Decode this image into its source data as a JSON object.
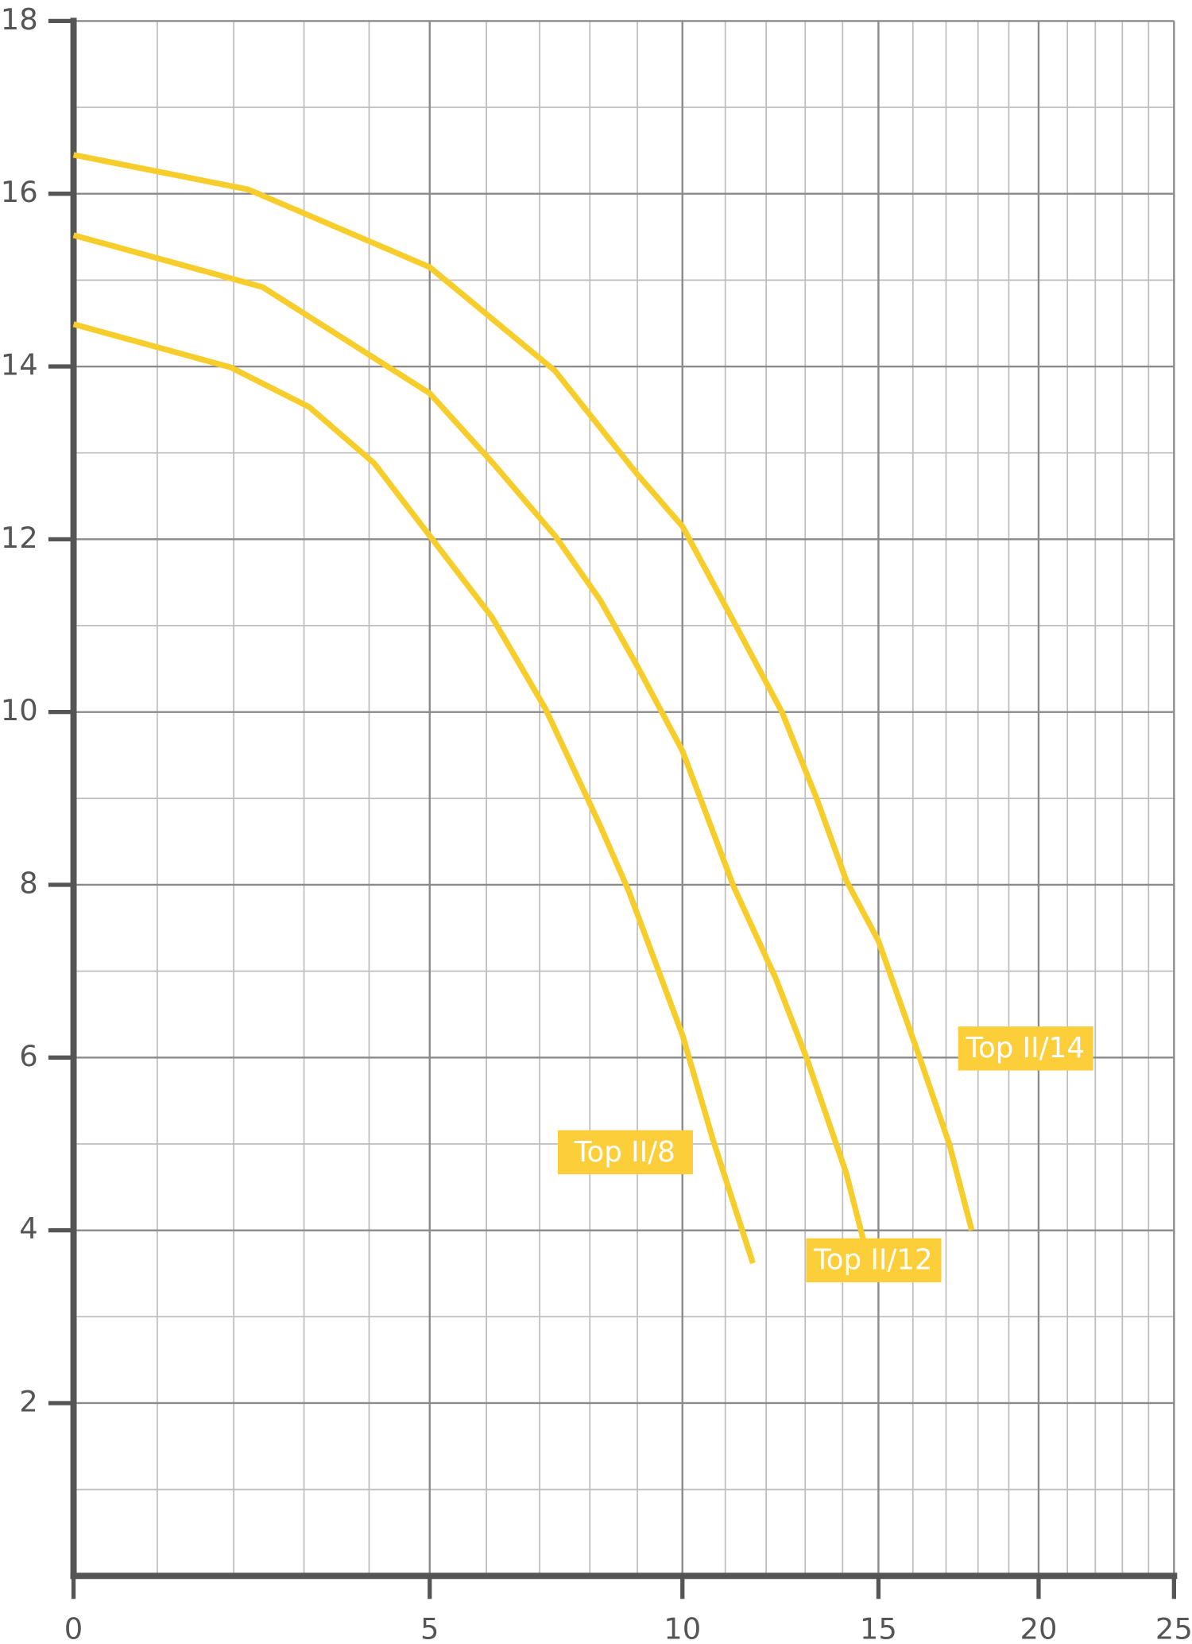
{
  "chart_data": {
    "type": "line",
    "xscale": "log",
    "xscale_offset": 10,
    "xlim": [
      0,
      25
    ],
    "xticks": [
      0,
      5,
      10,
      15,
      20,
      25
    ],
    "xminorticks": [
      1,
      2,
      3,
      4,
      6,
      7,
      8,
      9,
      11,
      12,
      13,
      14,
      16,
      17,
      18,
      19,
      21,
      22,
      23,
      24
    ],
    "ylim": [
      0,
      18
    ],
    "yticks": [
      2,
      4,
      6,
      8,
      10,
      12,
      14,
      16,
      18
    ],
    "yminorticks": [
      1,
      3,
      5,
      7,
      9,
      11,
      13,
      15,
      17
    ],
    "grid": true,
    "series": [
      {
        "name": "Top II/8",
        "color": "#f7cd2c",
        "x": [
          0,
          1.96,
          3.08,
          4.08,
          5,
          6.1,
          7.11,
          8.2,
          8.82,
          10,
          10.7,
          11.67
        ],
        "values": [
          14.49,
          13.99,
          13.53,
          12.88,
          12.04,
          11.1,
          10.04,
          8.7,
          7.92,
          6.26,
          5.06,
          3.62
        ]
      },
      {
        "name": "Top II/12",
        "color": "#f7cd2c",
        "x": [
          0,
          2.4,
          5,
          6.12,
          7.3,
          8.22,
          9.05,
          10,
          11.2,
          12.24,
          13.05,
          14.1,
          14.76
        ],
        "values": [
          15.52,
          14.92,
          13.69,
          12.88,
          12.04,
          11.29,
          10.48,
          9.55,
          7.98,
          6.92,
          5.98,
          4.66,
          3.59
        ]
      },
      {
        "name": "Top II/14",
        "color": "#f7cd2c",
        "x": [
          0,
          2.2,
          5,
          7.3,
          9.0,
          10,
          11.2,
          12.4,
          13.3,
          14.1,
          15,
          16.2,
          17.1,
          17.8
        ],
        "values": [
          16.45,
          16.05,
          15.15,
          13.95,
          12.75,
          12.15,
          11.05,
          10,
          9,
          8.05,
          7.35,
          6,
          5,
          4
        ]
      }
    ]
  }
}
